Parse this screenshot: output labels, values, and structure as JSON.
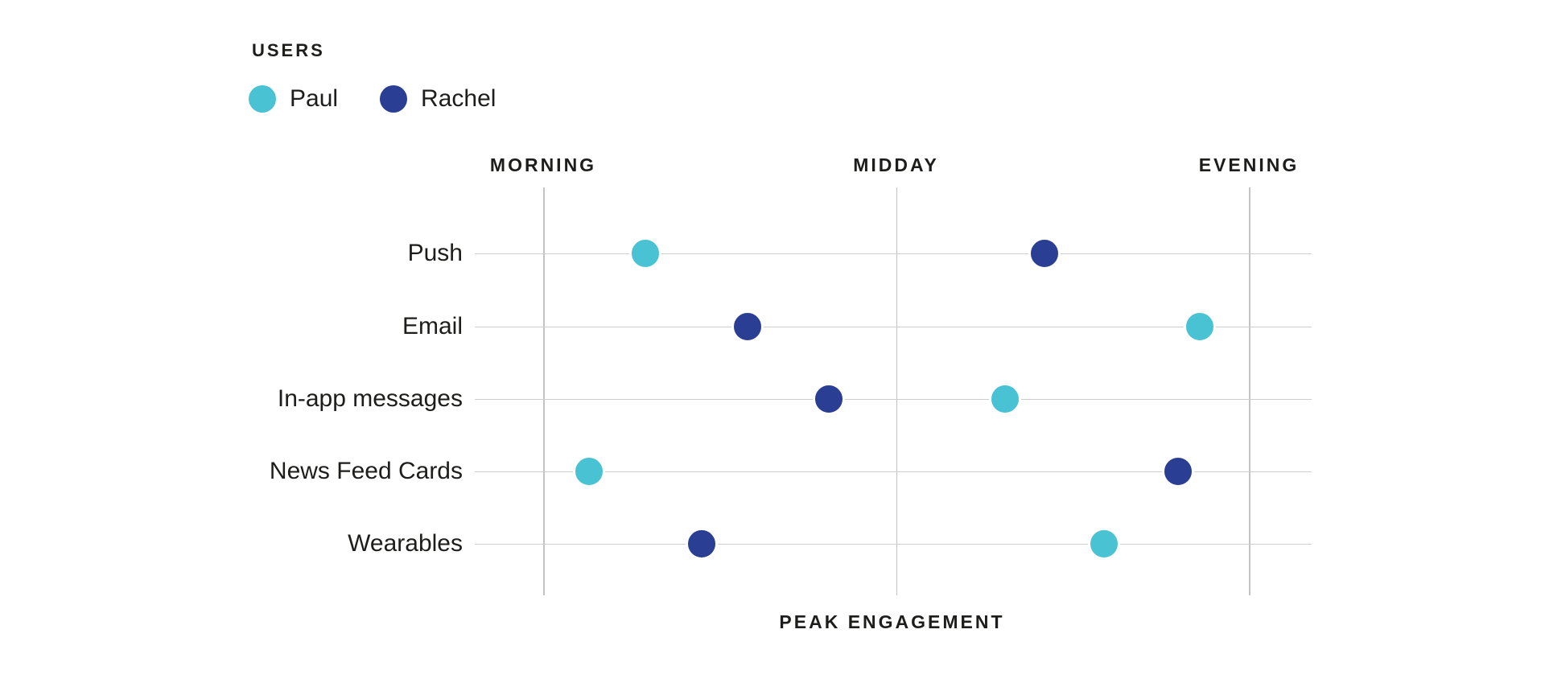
{
  "legend": {
    "title": "USERS",
    "users": [
      {
        "name": "Paul",
        "color": "#49c2d4"
      },
      {
        "name": "Rachel",
        "color": "#2a3e93"
      }
    ]
  },
  "chart_data": {
    "type": "scatter",
    "title": "",
    "xlabel": "PEAK ENGAGEMENT",
    "x_categories": [
      "MORNING",
      "MIDDAY",
      "EVENING"
    ],
    "x_scale_note": "value units: 0 = Morning gridline, 1 = Midday gridline, 2 = Evening gridline",
    "xlim": [
      -0.2,
      2.2
    ],
    "rows": [
      "Push",
      "Email",
      "In-app messages",
      "News Feed Cards",
      "Wearables"
    ],
    "series": [
      {
        "name": "Paul",
        "color": "#49c2d4",
        "values": [
          0.29,
          1.86,
          1.31,
          0.13,
          1.59
        ]
      },
      {
        "name": "Rachel",
        "color": "#2a3e93",
        "values": [
          1.42,
          0.58,
          0.81,
          1.8,
          0.45
        ]
      }
    ],
    "legend_position": "top-left",
    "grid": "vertical gridline at each x category; one horizontal guide line per row"
  }
}
